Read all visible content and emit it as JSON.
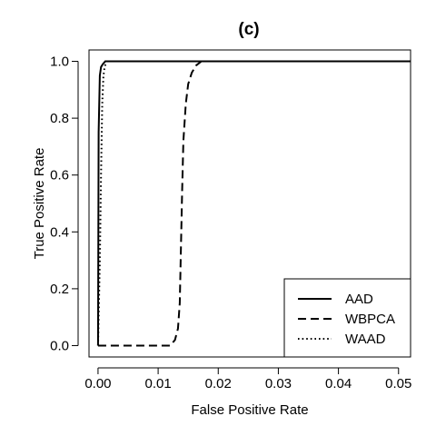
{
  "chart_data": {
    "type": "line",
    "title": "(c)",
    "xlabel": "False Positive Rate",
    "ylabel": "True Positive Rate",
    "xlim": [
      -0.0015,
      0.052
    ],
    "ylim": [
      -0.04,
      1.04
    ],
    "xticks": [
      0.0,
      0.01,
      0.02,
      0.03,
      0.04,
      0.05
    ],
    "xtick_labels": [
      "0.00",
      "0.01",
      "0.02",
      "0.03",
      "0.04",
      "0.05"
    ],
    "yticks": [
      0.0,
      0.2,
      0.4,
      0.6,
      0.8,
      1.0
    ],
    "ytick_labels": [
      "0.0",
      "0.2",
      "0.4",
      "0.6",
      "0.8",
      "1.0"
    ],
    "grid": false,
    "legend_position": "bottom-right",
    "series": [
      {
        "name": "AAD",
        "dash": "solid",
        "color": "#000000",
        "x": [
          0.0,
          0.0001,
          0.0003,
          0.0005,
          0.0008,
          0.0012,
          0.002,
          0.004,
          0.052
        ],
        "y": [
          0.0,
          0.75,
          0.95,
          0.98,
          0.99,
          1.0,
          1.0,
          1.0,
          1.0
        ]
      },
      {
        "name": "WBPCA",
        "dash": "dashed",
        "color": "#000000",
        "x": [
          0.0,
          0.006,
          0.012,
          0.0128,
          0.0133,
          0.0136,
          0.0138,
          0.014,
          0.0142,
          0.0146,
          0.015,
          0.0156,
          0.0163,
          0.0172,
          0.052
        ],
        "y": [
          0.0,
          0.0,
          0.0,
          0.02,
          0.06,
          0.15,
          0.35,
          0.55,
          0.72,
          0.85,
          0.92,
          0.96,
          0.985,
          1.0,
          1.0
        ]
      },
      {
        "name": "WAAD",
        "dash": "dotted",
        "color": "#000000",
        "x": [
          0.0,
          0.0003,
          0.0005,
          0.0007,
          0.0009,
          0.0011,
          0.0014,
          0.002,
          0.052
        ],
        "y": [
          0.0,
          0.3,
          0.6,
          0.85,
          0.95,
          0.98,
          1.0,
          1.0,
          1.0
        ]
      }
    ]
  }
}
